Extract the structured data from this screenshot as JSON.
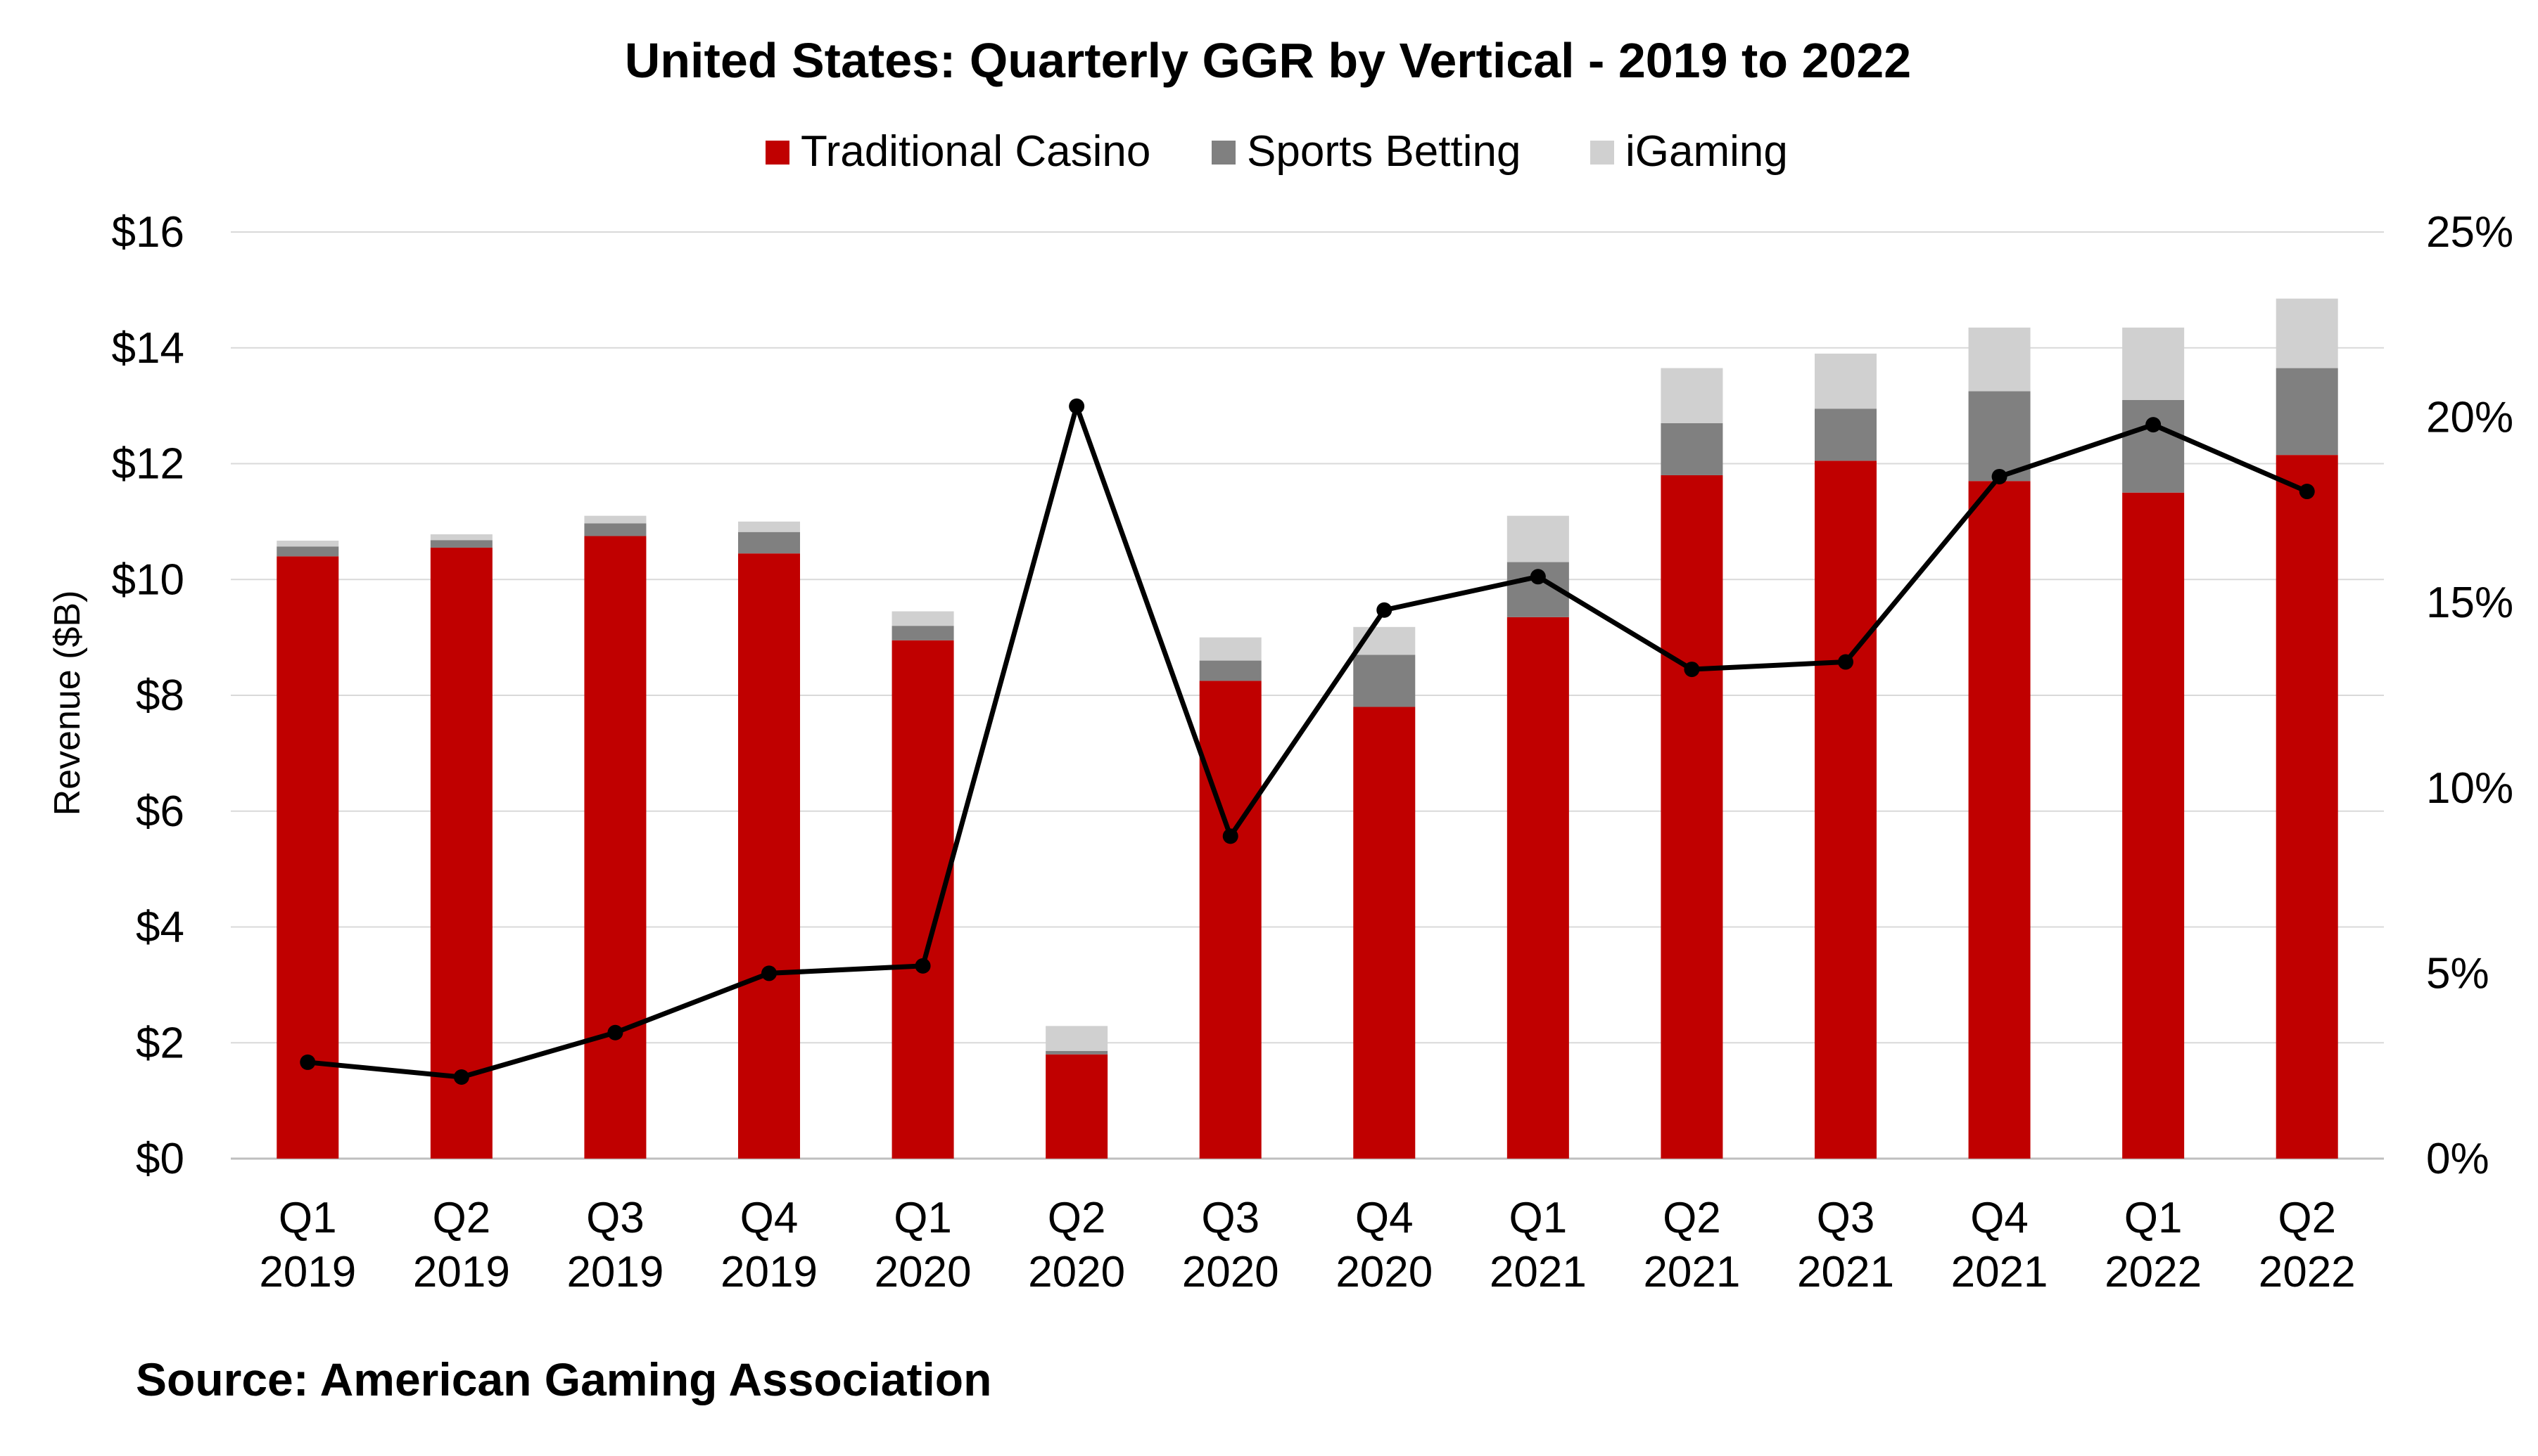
{
  "chart_data": {
    "type": "bar",
    "stacked": true,
    "title": "United States: Quarterly GGR by Vertical - 2019 to 2022",
    "xlabel": "",
    "ylabel": "Revenue ($B)",
    "ylim": [
      0,
      16
    ],
    "y_ticks": [
      "$0",
      "$2",
      "$4",
      "$6",
      "$8",
      "$10",
      "$12",
      "$14",
      "$16"
    ],
    "y2lim": [
      0,
      25
    ],
    "y2_ticks": [
      "0%",
      "5%",
      "10%",
      "15%",
      "20%",
      "25%"
    ],
    "grid": true,
    "legend_position": "top-center",
    "categories": [
      [
        "Q1",
        "2019"
      ],
      [
        "Q2",
        "2019"
      ],
      [
        "Q3",
        "2019"
      ],
      [
        "Q4",
        "2019"
      ],
      [
        "Q1",
        "2020"
      ],
      [
        "Q2",
        "2020"
      ],
      [
        "Q3",
        "2020"
      ],
      [
        "Q4",
        "2020"
      ],
      [
        "Q1",
        "2021"
      ],
      [
        "Q2",
        "2021"
      ],
      [
        "Q3",
        "2021"
      ],
      [
        "Q4",
        "2021"
      ],
      [
        "Q1",
        "2022"
      ],
      [
        "Q2",
        "2022"
      ]
    ],
    "series": [
      {
        "name": "Traditional Casino",
        "color": "#c00000",
        "values": [
          10.4,
          10.55,
          10.75,
          10.45,
          8.95,
          1.8,
          8.25,
          7.8,
          9.35,
          11.8,
          12.05,
          11.7,
          11.5,
          12.15
        ]
      },
      {
        "name": "Sports Betting",
        "color": "#808080",
        "values": [
          0.17,
          0.13,
          0.22,
          0.37,
          0.25,
          0.06,
          0.35,
          0.9,
          0.95,
          0.9,
          0.9,
          1.55,
          1.6,
          1.5
        ]
      },
      {
        "name": "iGaming",
        "color": "#d0d0d0",
        "values": [
          0.1,
          0.1,
          0.13,
          0.18,
          0.25,
          0.43,
          0.4,
          0.48,
          0.8,
          0.95,
          0.95,
          1.1,
          1.25,
          1.2
        ]
      }
    ],
    "line_series": {
      "color": "#000000",
      "axis": "right",
      "values": [
        2.6,
        2.2,
        3.4,
        5.0,
        5.2,
        20.3,
        8.7,
        14.8,
        15.7,
        13.2,
        13.4,
        18.4,
        19.8,
        18.0
      ]
    },
    "source": "Source: American Gaming Association"
  }
}
